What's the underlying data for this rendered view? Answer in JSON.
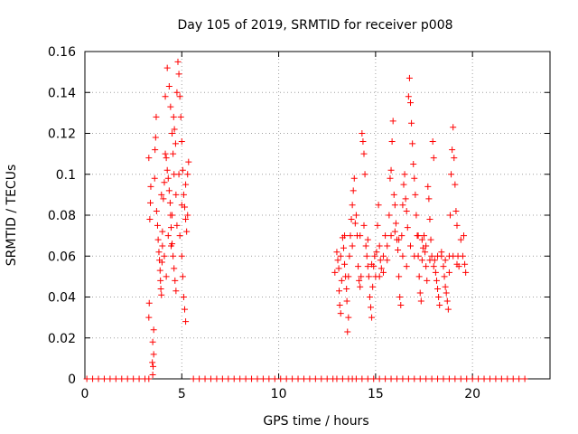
{
  "chart_data": {
    "type": "scatter",
    "title": "Day 105 of 2019, SRMTID for receiver p008",
    "xlabel": "GPS time / hours",
    "ylabel": "SRMTID / TECUs",
    "xlim": [
      0,
      24
    ],
    "ylim": [
      0,
      0.16
    ],
    "xticks": [
      0,
      5,
      10,
      15,
      20
    ],
    "xtick_labels": [
      "0",
      "5",
      "10",
      "15",
      "20"
    ],
    "yticks": [
      0,
      0.02,
      0.04,
      0.06,
      0.08,
      0.1,
      0.12,
      0.14,
      0.16
    ],
    "ytick_labels": [
      "0",
      "0.02",
      "0.04",
      "0.06",
      "0.08",
      "0.1",
      "0.12",
      "0.14",
      "0.16"
    ],
    "grid": true,
    "marker": "+",
    "marker_color": "#ff0000",
    "series": [
      {
        "name": "SRMTID",
        "points": [
          [
            0.1,
            0
          ],
          [
            0.4,
            0
          ],
          [
            0.7,
            0
          ],
          [
            1.0,
            0
          ],
          [
            1.3,
            0
          ],
          [
            1.6,
            0
          ],
          [
            1.9,
            0
          ],
          [
            2.2,
            0
          ],
          [
            2.5,
            0
          ],
          [
            2.8,
            0
          ],
          [
            3.1,
            0
          ],
          [
            3.3,
            0
          ],
          [
            3.3,
            0.03
          ],
          [
            3.32,
            0.037
          ],
          [
            3.35,
            0.078
          ],
          [
            3.38,
            0.086
          ],
          [
            3.3,
            0.108
          ],
          [
            3.4,
            0.094
          ],
          [
            3.5,
            0.002
          ],
          [
            3.52,
            0.006
          ],
          [
            3.55,
            0.012
          ],
          [
            3.5,
            0.018
          ],
          [
            3.55,
            0.024
          ],
          [
            3.48,
            0.008
          ],
          [
            3.62,
            0.112
          ],
          [
            3.65,
            0.118
          ],
          [
            3.68,
            0.128
          ],
          [
            3.6,
            0.098
          ],
          [
            3.7,
            0.082
          ],
          [
            3.75,
            0.075
          ],
          [
            3.78,
            0.068
          ],
          [
            3.82,
            0.062
          ],
          [
            3.85,
            0.058
          ],
          [
            3.88,
            0.053
          ],
          [
            3.9,
            0.048
          ],
          [
            3.92,
            0.044
          ],
          [
            3.95,
            0.041
          ],
          [
            3.98,
            0.057
          ],
          [
            4.0,
            0.072
          ],
          [
            4.05,
            0.088
          ],
          [
            4.1,
            0.096
          ],
          [
            4.15,
            0.11
          ],
          [
            4.2,
            0.108
          ],
          [
            4.25,
            0.102
          ],
          [
            4.3,
            0.098
          ],
          [
            4.35,
            0.092
          ],
          [
            4.4,
            0.086
          ],
          [
            4.42,
            0.08
          ],
          [
            4.45,
            0.074
          ],
          [
            4.5,
            0.066
          ],
          [
            4.55,
            0.06
          ],
          [
            4.6,
            0.054
          ],
          [
            4.65,
            0.048
          ],
          [
            4.7,
            0.043
          ],
          [
            4.15,
            0.138
          ],
          [
            4.25,
            0.152
          ],
          [
            4.35,
            0.143
          ],
          [
            4.42,
            0.133
          ],
          [
            4.5,
            0.12
          ],
          [
            4.55,
            0.11
          ],
          [
            4.58,
            0.128
          ],
          [
            4.62,
            0.122
          ],
          [
            4.68,
            0.115
          ],
          [
            4.75,
            0.14
          ],
          [
            4.8,
            0.155
          ],
          [
            4.85,
            0.149
          ],
          [
            4.9,
            0.138
          ],
          [
            4.95,
            0.128
          ],
          [
            5.0,
            0.116
          ],
          [
            5.05,
            0.102
          ],
          [
            5.1,
            0.09
          ],
          [
            5.15,
            0.084
          ],
          [
            5.2,
            0.078
          ],
          [
            5.25,
            0.072
          ],
          [
            5.3,
            0.1
          ],
          [
            5.35,
            0.106
          ],
          [
            5.0,
            0.06
          ],
          [
            5.05,
            0.05
          ],
          [
            5.1,
            0.04
          ],
          [
            5.15,
            0.034
          ],
          [
            5.2,
            0.028
          ],
          [
            4.9,
            0.07
          ],
          [
            4.6,
            0.1
          ],
          [
            4.3,
            0.07
          ],
          [
            4.0,
            0.065
          ],
          [
            3.95,
            0.09
          ],
          [
            4.1,
            0.06
          ],
          [
            4.2,
            0.05
          ],
          [
            4.5,
            0.08
          ],
          [
            4.7,
            0.09
          ],
          [
            4.85,
            0.1
          ],
          [
            5.0,
            0.085
          ],
          [
            5.2,
            0.095
          ],
          [
            5.3,
            0.08
          ],
          [
            4.45,
            0.065
          ],
          [
            4.75,
            0.075
          ],
          [
            5.6,
            0
          ],
          [
            5.9,
            0
          ],
          [
            6.2,
            0
          ],
          [
            6.5,
            0
          ],
          [
            6.8,
            0
          ],
          [
            7.1,
            0
          ],
          [
            7.4,
            0
          ],
          [
            7.7,
            0
          ],
          [
            8.0,
            0
          ],
          [
            8.3,
            0
          ],
          [
            8.6,
            0
          ],
          [
            8.9,
            0
          ],
          [
            9.2,
            0
          ],
          [
            9.5,
            0
          ],
          [
            9.8,
            0
          ],
          [
            10.1,
            0
          ],
          [
            10.4,
            0
          ],
          [
            10.7,
            0
          ],
          [
            11.0,
            0
          ],
          [
            11.3,
            0
          ],
          [
            11.6,
            0
          ],
          [
            11.9,
            0
          ],
          [
            12.2,
            0
          ],
          [
            12.5,
            0
          ],
          [
            12.8,
            0
          ],
          [
            12.9,
            0.052
          ],
          [
            13.0,
            0.062
          ],
          [
            13.05,
            0.058
          ],
          [
            13.1,
            0.054
          ],
          [
            13.12,
            0.043
          ],
          [
            13.15,
            0.036
          ],
          [
            13.2,
            0.032
          ],
          [
            13.25,
            0.048
          ],
          [
            13.3,
            0.069
          ],
          [
            13.35,
            0.064
          ],
          [
            13.4,
            0.056
          ],
          [
            13.45,
            0.05
          ],
          [
            13.5,
            0.044
          ],
          [
            13.52,
            0.038
          ],
          [
            13.55,
            0.023
          ],
          [
            13.6,
            0.03
          ],
          [
            13.65,
            0.06
          ],
          [
            13.7,
            0.07
          ],
          [
            13.75,
            0.078
          ],
          [
            13.8,
            0.085
          ],
          [
            13.85,
            0.092
          ],
          [
            13.9,
            0.098
          ],
          [
            13.95,
            0.076
          ],
          [
            14.0,
            0.08
          ],
          [
            14.05,
            0.07
          ],
          [
            14.1,
            0.055
          ],
          [
            14.15,
            0.048
          ],
          [
            14.2,
            0.045
          ],
          [
            14.25,
            0.05
          ],
          [
            14.3,
            0.12
          ],
          [
            14.35,
            0.116
          ],
          [
            14.4,
            0.11
          ],
          [
            14.45,
            0.1
          ],
          [
            14.5,
            0.065
          ],
          [
            14.55,
            0.06
          ],
          [
            14.6,
            0.055
          ],
          [
            14.65,
            0.05
          ],
          [
            14.7,
            0.04
          ],
          [
            14.75,
            0.035
          ],
          [
            14.8,
            0.03
          ],
          [
            14.85,
            0.045
          ],
          [
            14.9,
            0.055
          ],
          [
            14.95,
            0.06
          ],
          [
            15.0,
            0.05
          ],
          [
            15.05,
            0.062
          ],
          [
            15.1,
            0.075
          ],
          [
            15.15,
            0.085
          ],
          [
            15.2,
            0.065
          ],
          [
            15.25,
            0.058
          ],
          [
            15.3,
            0.054
          ],
          [
            15.4,
            0.06
          ],
          [
            15.5,
            0.07
          ],
          [
            15.6,
            0.065
          ],
          [
            15.7,
            0.08
          ],
          [
            15.75,
            0.098
          ],
          [
            15.8,
            0.102
          ],
          [
            15.85,
            0.116
          ],
          [
            15.9,
            0.126
          ],
          [
            15.95,
            0.09
          ],
          [
            16.0,
            0.085
          ],
          [
            16.05,
            0.076
          ],
          [
            16.1,
            0.068
          ],
          [
            16.15,
            0.063
          ],
          [
            16.2,
            0.05
          ],
          [
            16.25,
            0.04
          ],
          [
            16.3,
            0.036
          ],
          [
            16.35,
            0.07
          ],
          [
            16.4,
            0.085
          ],
          [
            16.45,
            0.095
          ],
          [
            16.5,
            0.1
          ],
          [
            16.55,
            0.088
          ],
          [
            16.6,
            0.082
          ],
          [
            16.65,
            0.074
          ],
          [
            16.7,
            0.138
          ],
          [
            16.75,
            0.147
          ],
          [
            16.8,
            0.135
          ],
          [
            16.85,
            0.125
          ],
          [
            16.9,
            0.115
          ],
          [
            16.95,
            0.105
          ],
          [
            17.0,
            0.098
          ],
          [
            17.05,
            0.09
          ],
          [
            17.1,
            0.08
          ],
          [
            17.15,
            0.07
          ],
          [
            17.2,
            0.06
          ],
          [
            17.25,
            0.05
          ],
          [
            17.3,
            0.042
          ],
          [
            17.35,
            0.038
          ],
          [
            17.4,
            0.058
          ],
          [
            17.45,
            0.064
          ],
          [
            17.5,
            0.07
          ],
          [
            17.55,
            0.062
          ],
          [
            17.6,
            0.055
          ],
          [
            17.65,
            0.048
          ],
          [
            17.7,
            0.094
          ],
          [
            17.75,
            0.088
          ],
          [
            17.8,
            0.078
          ],
          [
            17.85,
            0.068
          ],
          [
            17.9,
            0.06
          ],
          [
            17.95,
            0.116
          ],
          [
            18.0,
            0.108
          ],
          [
            18.05,
            0.058
          ],
          [
            18.1,
            0.052
          ],
          [
            18.15,
            0.048
          ],
          [
            18.2,
            0.044
          ],
          [
            18.25,
            0.04
          ],
          [
            18.3,
            0.036
          ],
          [
            18.4,
            0.06
          ],
          [
            18.5,
            0.055
          ],
          [
            18.55,
            0.05
          ],
          [
            18.6,
            0.045
          ],
          [
            18.65,
            0.042
          ],
          [
            18.7,
            0.038
          ],
          [
            18.75,
            0.034
          ],
          [
            18.8,
            0.06
          ],
          [
            18.85,
            0.08
          ],
          [
            18.9,
            0.1
          ],
          [
            18.95,
            0.112
          ],
          [
            19.0,
            0.123
          ],
          [
            19.05,
            0.108
          ],
          [
            19.1,
            0.095
          ],
          [
            19.15,
            0.082
          ],
          [
            19.2,
            0.075
          ],
          [
            19.25,
            0.06
          ],
          [
            19.3,
            0.055
          ],
          [
            19.4,
            0.068
          ],
          [
            19.5,
            0.06
          ],
          [
            19.55,
            0.07
          ],
          [
            19.6,
            0.056
          ],
          [
            19.65,
            0.052
          ],
          [
            13.2,
            0.06
          ],
          [
            13.4,
            0.07
          ],
          [
            13.6,
            0.05
          ],
          [
            13.8,
            0.065
          ],
          [
            14.2,
            0.07
          ],
          [
            14.4,
            0.075
          ],
          [
            14.6,
            0.068
          ],
          [
            14.8,
            0.056
          ],
          [
            15.2,
            0.05
          ],
          [
            15.4,
            0.052
          ],
          [
            15.6,
            0.058
          ],
          [
            15.8,
            0.07
          ],
          [
            16.0,
            0.072
          ],
          [
            16.2,
            0.068
          ],
          [
            16.4,
            0.06
          ],
          [
            16.6,
            0.055
          ],
          [
            16.8,
            0.065
          ],
          [
            17.0,
            0.06
          ],
          [
            17.2,
            0.07
          ],
          [
            17.4,
            0.068
          ],
          [
            17.6,
            0.065
          ],
          [
            17.8,
            0.058
          ],
          [
            18.0,
            0.055
          ],
          [
            18.2,
            0.06
          ],
          [
            18.4,
            0.062
          ],
          [
            18.6,
            0.058
          ],
          [
            18.8,
            0.052
          ],
          [
            19.0,
            0.06
          ],
          [
            19.2,
            0.056
          ],
          [
            13.0,
            0
          ],
          [
            13.3,
            0
          ],
          [
            13.6,
            0
          ],
          [
            13.8,
            0
          ],
          [
            14.0,
            0
          ],
          [
            14.3,
            0
          ],
          [
            14.6,
            0
          ],
          [
            14.9,
            0
          ],
          [
            15.2,
            0
          ],
          [
            15.5,
            0
          ],
          [
            15.8,
            0
          ],
          [
            16.1,
            0
          ],
          [
            16.4,
            0
          ],
          [
            16.7,
            0
          ],
          [
            17.0,
            0
          ],
          [
            17.3,
            0
          ],
          [
            17.6,
            0
          ],
          [
            17.9,
            0
          ],
          [
            18.2,
            0
          ],
          [
            18.5,
            0
          ],
          [
            18.8,
            0
          ],
          [
            19.1,
            0
          ],
          [
            19.4,
            0
          ],
          [
            19.7,
            0
          ],
          [
            20.0,
            0
          ],
          [
            20.3,
            0
          ],
          [
            20.6,
            0
          ],
          [
            20.9,
            0
          ],
          [
            21.2,
            0
          ],
          [
            21.5,
            0
          ],
          [
            21.8,
            0
          ],
          [
            22.1,
            0
          ],
          [
            22.4,
            0
          ],
          [
            22.7,
            0
          ]
        ]
      }
    ]
  }
}
